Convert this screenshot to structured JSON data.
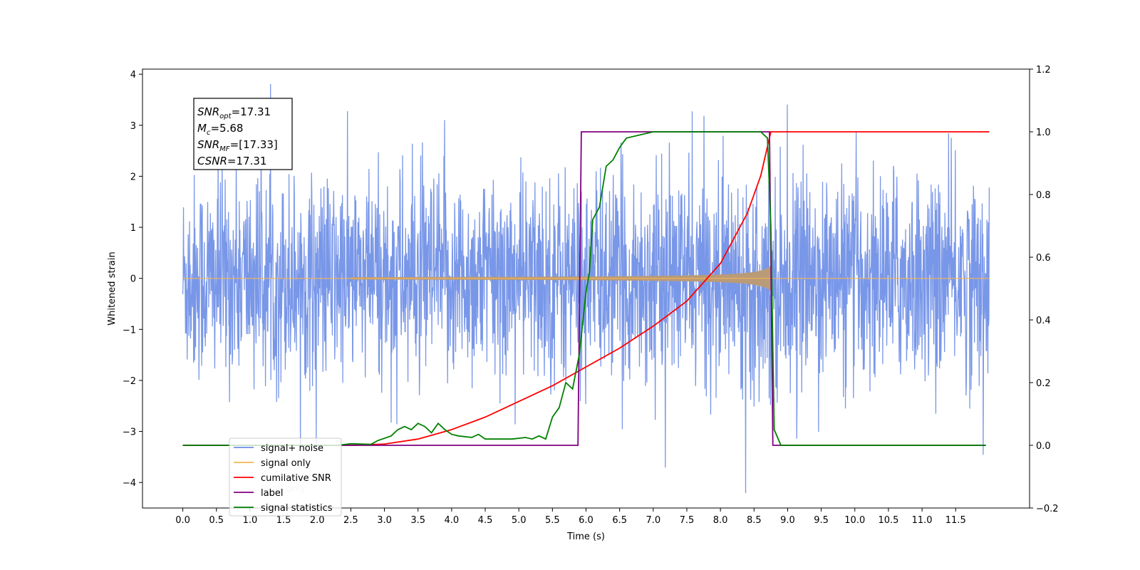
{
  "chart_data": {
    "type": "line",
    "xlabel": "Time (s)",
    "ylabel": "Whitened strain",
    "xlim": [
      -0.6,
      12.6
    ],
    "ylim": [
      -4.5,
      4.1
    ],
    "y2lim": [
      -0.2,
      1.2
    ],
    "xticks": [
      "0.0",
      "0.5",
      "1.0",
      "1.5",
      "2.0",
      "2.5",
      "3.0",
      "3.5",
      "4.0",
      "4.5",
      "5.0",
      "5.5",
      "6.0",
      "6.5",
      "7.0",
      "7.5",
      "8.0",
      "8.5",
      "9.0",
      "9.5",
      "10.0",
      "10.5",
      "11.0",
      "11.5"
    ],
    "yticks": [
      "4",
      "3",
      "2",
      "1",
      "0",
      "−1",
      "−2",
      "−3",
      "−4"
    ],
    "y2ticks": [
      "1.2",
      "1.0",
      "0.8",
      "0.6",
      "0.4",
      "0.2",
      "0.0",
      "−0.2"
    ],
    "signal_window": {
      "start": 2.5,
      "merger": 8.75
    },
    "label_window": {
      "rise": 5.9,
      "fall": 8.8
    },
    "noise_amplitude": 1.0,
    "series": [
      {
        "name": "signal+ noise",
        "color": "#6a8ce6",
        "axis": "left"
      },
      {
        "name": "signal only",
        "color": "#f5b455",
        "axis": "left"
      },
      {
        "name": "cumilative SNR",
        "color": "#ff0000",
        "axis": "right",
        "points": [
          [
            0,
            0
          ],
          [
            2.5,
            0
          ],
          [
            3.0,
            0.004
          ],
          [
            3.5,
            0.02
          ],
          [
            4.0,
            0.05
          ],
          [
            4.5,
            0.09
          ],
          [
            5.0,
            0.14
          ],
          [
            5.5,
            0.19
          ],
          [
            6.0,
            0.25
          ],
          [
            6.5,
            0.31
          ],
          [
            7.0,
            0.38
          ],
          [
            7.5,
            0.46
          ],
          [
            8.0,
            0.58
          ],
          [
            8.4,
            0.74
          ],
          [
            8.6,
            0.86
          ],
          [
            8.75,
            1.0
          ],
          [
            8.8,
            1.0
          ],
          [
            12.0,
            1.0
          ]
        ]
      },
      {
        "name": "label",
        "color": "#800080",
        "axis": "right",
        "points": [
          [
            0,
            0
          ],
          [
            5.88,
            0
          ],
          [
            5.93,
            1.0
          ],
          [
            8.73,
            1.0
          ],
          [
            8.78,
            0
          ],
          [
            11.95,
            0
          ]
        ]
      },
      {
        "name": "signal statistics",
        "color": "#008000",
        "axis": "right",
        "points": [
          [
            0,
            0
          ],
          [
            2.0,
            0
          ],
          [
            2.3,
            0.0
          ],
          [
            2.5,
            0.005
          ],
          [
            2.8,
            0.003
          ],
          [
            2.9,
            0.015
          ],
          [
            3.1,
            0.03
          ],
          [
            3.2,
            0.05
          ],
          [
            3.3,
            0.06
          ],
          [
            3.4,
            0.05
          ],
          [
            3.5,
            0.07
          ],
          [
            3.6,
            0.06
          ],
          [
            3.7,
            0.04
          ],
          [
            3.8,
            0.07
          ],
          [
            3.9,
            0.05
          ],
          [
            4.0,
            0.035
          ],
          [
            4.1,
            0.03
          ],
          [
            4.3,
            0.025
          ],
          [
            4.4,
            0.035
          ],
          [
            4.5,
            0.02
          ],
          [
            4.7,
            0.02
          ],
          [
            4.9,
            0.02
          ],
          [
            5.1,
            0.025
          ],
          [
            5.2,
            0.02
          ],
          [
            5.3,
            0.03
          ],
          [
            5.4,
            0.02
          ],
          [
            5.5,
            0.09
          ],
          [
            5.6,
            0.12
          ],
          [
            5.7,
            0.2
          ],
          [
            5.8,
            0.18
          ],
          [
            5.9,
            0.29
          ],
          [
            6.0,
            0.49
          ],
          [
            6.05,
            0.55
          ],
          [
            6.1,
            0.72
          ],
          [
            6.2,
            0.76
          ],
          [
            6.3,
            0.89
          ],
          [
            6.4,
            0.91
          ],
          [
            6.5,
            0.95
          ],
          [
            6.6,
            0.98
          ],
          [
            6.8,
            0.99
          ],
          [
            7.0,
            1.0
          ],
          [
            8.6,
            1.0
          ],
          [
            8.7,
            0.98
          ],
          [
            8.75,
            0.7
          ],
          [
            8.8,
            0.05
          ],
          [
            8.9,
            0.0
          ],
          [
            11.95,
            0.0
          ]
        ]
      }
    ],
    "annotations": {
      "snr_opt": {
        "main": "SNR",
        "sub": "opt",
        "value": "=17.31"
      },
      "mc": {
        "main": "M",
        "sub": "c",
        "value": "=5.68"
      },
      "snr_mf": {
        "main": "SNR",
        "sub": "MF",
        "value": "=[17.33]"
      },
      "csnr": {
        "main": "CSNR",
        "sub": "",
        "value": "=17.31"
      }
    },
    "legend_position": "bottom-left",
    "legend": [
      "signal+ noise",
      "signal only",
      "cumilative SNR",
      "label",
      "signal statistics"
    ],
    "legend_underlying": [
      "label only"
    ],
    "grid": false
  }
}
